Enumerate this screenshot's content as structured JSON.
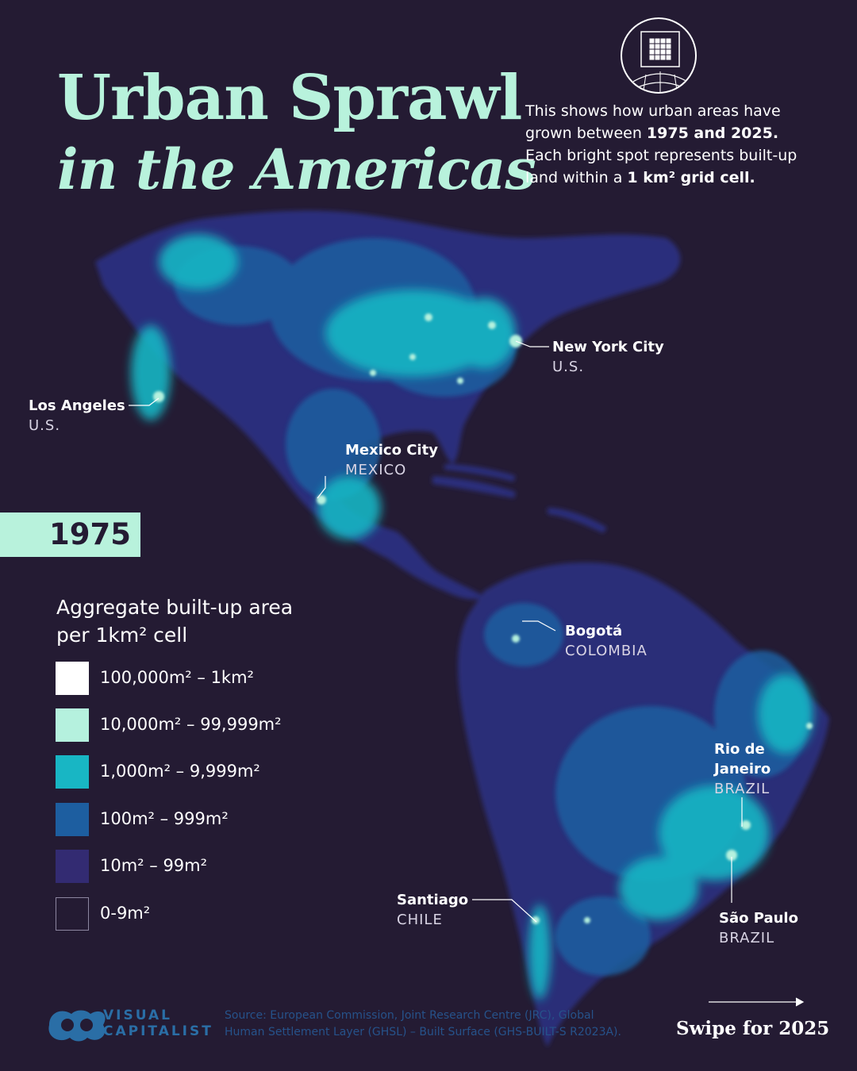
{
  "title": {
    "line1": "Urban Sprawl",
    "line2": "in the Americas"
  },
  "intro": {
    "p1": "This shows how urban areas have grown between ",
    "b1": "1975 and 2025.",
    "p2": " Each bright spot represents built-up land within a ",
    "b2": "1 km² grid cell."
  },
  "year": "1975",
  "cities": [
    {
      "name": "New York City",
      "country": "U.S."
    },
    {
      "name": "Los Angeles",
      "country": "U.S."
    },
    {
      "name": "Mexico City",
      "country": "MEXICO"
    },
    {
      "name": "Bogotá",
      "country": "COLOMBIA"
    },
    {
      "name": "Rio de Janeiro",
      "country": "BRAZIL"
    },
    {
      "name": "Santiago",
      "country": "CHILE"
    },
    {
      "name": "São Paulo",
      "country": "BRAZIL"
    }
  ],
  "legend": {
    "title": "Aggregate built-up area per 1km² cell",
    "items": [
      {
        "label": "100,000m² – 1km²",
        "color": "#ffffff"
      },
      {
        "label": "10,000m² – 99,999m²",
        "color": "#b5f1de"
      },
      {
        "label": "1,000m² – 9,999m²",
        "color": "#18b6c4"
      },
      {
        "label": "100m² – 999m²",
        "color": "#1d5ea0"
      },
      {
        "label": "10m² – 99m²",
        "color": "#332b72"
      },
      {
        "label": "0-9m²",
        "color": "#241b33"
      }
    ]
  },
  "logo": {
    "line1": "VISUAL",
    "line2": "CAPITALIST"
  },
  "source": "Source: European Commission, Joint Research Centre (JRC), Global Human Settlement Layer (GHSL) – Built Surface (GHS-BUILT-S R2023A).",
  "swipe": "Swipe for 2025",
  "colors": {
    "background": "#241b33",
    "title": "#b8f2dc",
    "land_low": "#332b72",
    "land_mid": "#1d5ea0",
    "land_high": "#18b6c4",
    "urban": "#b5f1de"
  }
}
